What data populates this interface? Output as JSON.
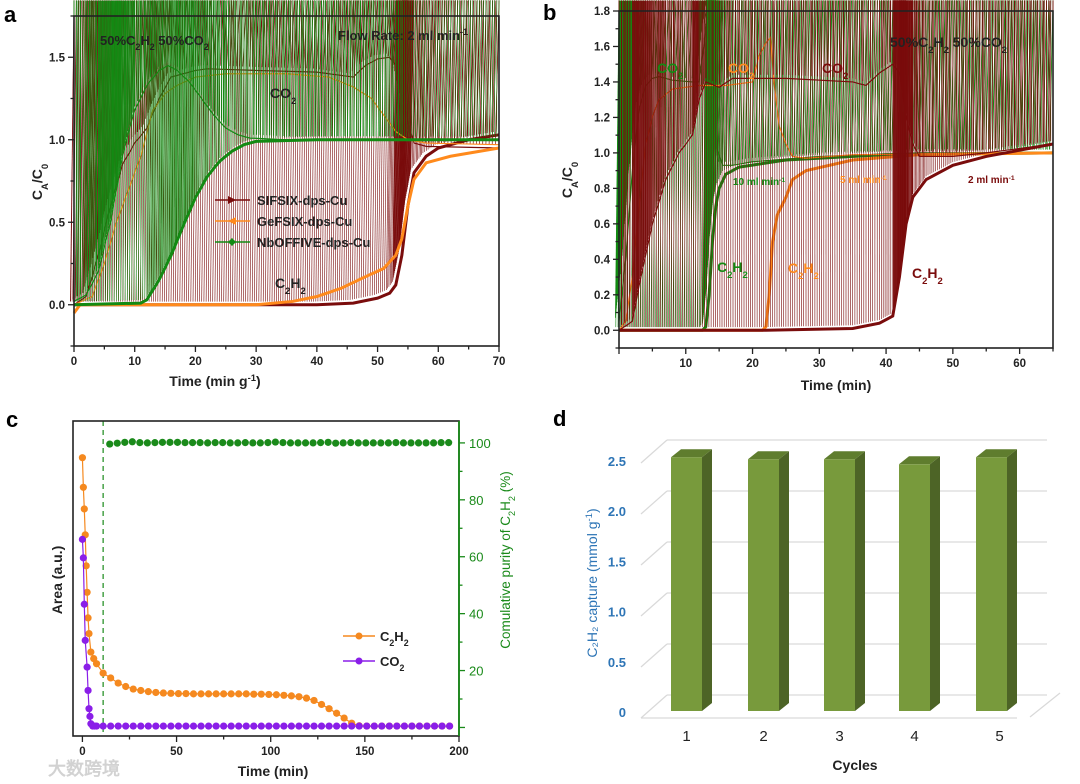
{
  "watermark": "大数跨境",
  "colors": {
    "sifsix": "#7a0c0c",
    "gefsix": "#ff8a1c",
    "nboffive": "#138a13",
    "c_orange": "#f5891f",
    "c_purple": "#8a1ee8",
    "c_green": "#1a8a1a",
    "d_bar": "#789a3c",
    "d_bar_side": "#4d6426",
    "d_bar_top": "#5f7d2e",
    "d_axis": "#2e75b6"
  },
  "chart_data": [
    {
      "panel": "a",
      "type": "line",
      "panel_label": "a",
      "xlabel": "Time (min g^{-1})",
      "ylabel": "C_{A}/C_{0}",
      "xlim": [
        0,
        70
      ],
      "ylim": [
        -0.25,
        1.75
      ],
      "xticks": [
        0,
        10,
        20,
        30,
        40,
        50,
        60,
        70
      ],
      "yticks": [
        0.0,
        0.5,
        1.0,
        1.5
      ],
      "ytick_labels": [
        "0.0",
        "0.5",
        "1.0",
        "1.5"
      ],
      "annotations": {
        "composition": "50%C_{2}H_{2}  50%CO_{2}",
        "flow": "Flow Rate: 2 ml min^{-1}",
        "co2": "CO_{2}",
        "c2h2": "C_{2}H_{2}"
      },
      "legend": [
        "SIFSIX-dps-Cu",
        "GeFSIX-dps-Cu",
        "NbOFFIVE-dps-Cu"
      ],
      "legend_position": "center",
      "series": [
        {
          "name": "SIFSIX-dps-Cu CO2",
          "material": "SIFSIX-dps-Cu",
          "gas": "CO2",
          "marker": "rtri",
          "filled": false,
          "x": [
            0,
            2,
            4,
            6,
            8,
            10,
            12,
            14,
            16,
            18,
            20,
            22,
            30,
            40,
            46,
            48,
            50,
            52,
            53,
            54,
            55,
            56,
            58,
            70
          ],
          "y": [
            0,
            0.05,
            0.3,
            0.6,
            0.85,
            0.98,
            1.07,
            1.25,
            1.38,
            1.4,
            1.42,
            1.43,
            1.42,
            1.41,
            1.38,
            1.45,
            1.49,
            1.5,
            1.45,
            1.3,
            1.1,
            0.98,
            0.96,
            0.95
          ]
        },
        {
          "name": "SIFSIX-dps-Cu C2H2",
          "material": "SIFSIX-dps-Cu",
          "gas": "C2H2",
          "marker": "rtri",
          "filled": true,
          "x": [
            0,
            10,
            40,
            46,
            50,
            52,
            53,
            54,
            55,
            56,
            58,
            60,
            65,
            70
          ],
          "y": [
            0,
            0,
            0,
            0.01,
            0.04,
            0.07,
            0.12,
            0.3,
            0.6,
            0.8,
            0.9,
            0.95,
            1.0,
            1.03
          ]
        },
        {
          "name": "GeFSIX-dps-Cu CO2",
          "material": "GeFSIX-dps-Cu",
          "gas": "CO2",
          "marker": "ltri",
          "filled": false,
          "x": [
            0,
            3,
            5,
            7,
            9,
            11,
            13,
            15,
            17,
            20,
            25,
            35,
            42,
            46,
            49,
            51,
            53,
            55,
            58,
            70
          ],
          "y": [
            0,
            0.05,
            0.25,
            0.5,
            0.7,
            0.9,
            1.18,
            1.28,
            1.33,
            1.38,
            1.4,
            1.4,
            1.38,
            1.32,
            1.25,
            1.15,
            1.05,
            1.0,
            0.98,
            0.97
          ]
        },
        {
          "name": "GeFSIX-dps-Cu C2H2",
          "material": "GeFSIX-dps-Cu",
          "gas": "C2H2",
          "marker": "ltri",
          "filled": true,
          "x": [
            0,
            1,
            30,
            36,
            40,
            44,
            48,
            51,
            53,
            54,
            55,
            56,
            58,
            62,
            70
          ],
          "y": [
            -0.05,
            0,
            0,
            0.02,
            0.05,
            0.1,
            0.17,
            0.22,
            0.3,
            0.4,
            0.6,
            0.76,
            0.86,
            0.9,
            0.95
          ]
        },
        {
          "name": "NbOFFIVE-dps-Cu CO2",
          "material": "NbOFFIVE-dps-Cu",
          "gas": "CO2",
          "marker": "diamond",
          "filled": false,
          "x": [
            0,
            2,
            4,
            6,
            8,
            9,
            10,
            12,
            14,
            15.5,
            17,
            19,
            21,
            23,
            25,
            27,
            29,
            35,
            54
          ],
          "y": [
            0.02,
            0.06,
            0.2,
            0.5,
            0.9,
            1.05,
            1.18,
            1.33,
            1.42,
            1.45,
            1.42,
            1.35,
            1.25,
            1.15,
            1.07,
            1.03,
            1.01,
            1.0,
            1.0
          ]
        },
        {
          "name": "NbOFFIVE-dps-Cu C2H2",
          "material": "NbOFFIVE-dps-Cu",
          "gas": "C2H2",
          "marker": "diamond",
          "filled": true,
          "x": [
            0,
            11,
            12,
            14,
            16,
            18,
            20,
            22,
            24,
            26,
            28,
            30,
            40,
            70
          ],
          "y": [
            0,
            0.01,
            0.03,
            0.15,
            0.3,
            0.48,
            0.65,
            0.78,
            0.87,
            0.93,
            0.97,
            0.99,
            1.0,
            1.0
          ]
        }
      ]
    },
    {
      "panel": "b",
      "type": "line",
      "panel_label": "b",
      "xlabel": "Time (min)",
      "ylabel": "C_{A}/C_{0}",
      "xlim": [
        0,
        65
      ],
      "ylim": [
        -0.1,
        1.8
      ],
      "xticks": [
        10,
        20,
        30,
        40,
        50,
        60
      ],
      "yticks": [
        0.0,
        0.2,
        0.4,
        0.6,
        0.8,
        1.0,
        1.2,
        1.4,
        1.6,
        1.8
      ],
      "ytick_labels": [
        "0.0",
        "0.2",
        "0.4",
        "0.6",
        "0.8",
        "1.0",
        "1.2",
        "1.4",
        "1.6",
        "1.8"
      ],
      "annotations": {
        "composition": "50%C_{2}H_{2} 50%CO_{2}",
        "co2_10": "CO_{2}",
        "co2_5": "CO_{2}",
        "co2_2": "CO_{2}",
        "rate_10": "10 ml min^{-1}",
        "rate_5": "5 ml min^{-1}",
        "rate_2": "2 ml min^{-1}",
        "c2h2_10": "C_{2}H_{2}",
        "c2h2_5": "C_{2}H_{2}",
        "c2h2_2": "C_{2}H_{2}"
      },
      "series": [
        {
          "name": "10 ml/min CO2",
          "marker": "rtri",
          "filled": false,
          "x": [
            0,
            1,
            2,
            3,
            4,
            5,
            6,
            8,
            11,
            12,
            12.7,
            13,
            13.5,
            14,
            14.5,
            15.5,
            17,
            20,
            30,
            45,
            65
          ],
          "y": [
            0.05,
            0.4,
            0.9,
            1.25,
            1.38,
            1.42,
            1.43,
            1.41,
            1.4,
            1.4,
            1.6,
            1.72,
            1.7,
            1.3,
            1.05,
            0.93,
            0.93,
            0.95,
            0.98,
            1.0,
            1.0
          ]
        },
        {
          "name": "10 ml/min C2H2",
          "marker": "rtri",
          "filled": true,
          "x": [
            0,
            12.5,
            13,
            13.5,
            14,
            14.5,
            15,
            16,
            18,
            25,
            40,
            65
          ],
          "y": [
            0,
            0,
            0.02,
            0.2,
            0.5,
            0.7,
            0.8,
            0.88,
            0.92,
            0.96,
            0.99,
            1.0
          ]
        },
        {
          "name": "5 ml/min CO2",
          "marker": "ltri",
          "filled": false,
          "x": [
            0,
            1,
            2,
            3,
            4,
            5,
            6,
            8,
            12,
            16,
            20,
            21,
            22,
            22.7,
            23.2,
            24,
            25,
            26,
            28,
            35,
            65
          ],
          "y": [
            0,
            0.05,
            0.3,
            0.7,
            1.05,
            1.2,
            1.3,
            1.36,
            1.38,
            1.38,
            1.4,
            1.55,
            1.62,
            1.65,
            1.4,
            1.15,
            1.05,
            0.98,
            0.97,
            0.99,
            1.0
          ]
        },
        {
          "name": "5 ml/min C2H2",
          "marker": "ltri",
          "filled": true,
          "x": [
            0,
            21.5,
            22,
            22.5,
            23,
            23.7,
            25,
            26,
            28,
            35,
            45,
            65
          ],
          "y": [
            0,
            0,
            0.02,
            0.2,
            0.5,
            0.65,
            0.75,
            0.85,
            0.9,
            0.96,
            0.99,
            1.0
          ]
        },
        {
          "name": "2 ml/min CO2",
          "marker": "diamond",
          "filled": false,
          "x": [
            0,
            2,
            3,
            5,
            7,
            9,
            11,
            12,
            13,
            15,
            17,
            25,
            35,
            37,
            39,
            41,
            42,
            43,
            44,
            45,
            50,
            55,
            65
          ],
          "y": [
            0,
            0.05,
            0.25,
            0.6,
            0.85,
            1.0,
            1.1,
            1.3,
            1.4,
            1.37,
            1.42,
            1.42,
            1.4,
            1.38,
            1.45,
            1.5,
            1.45,
            1.2,
            1.05,
            0.98,
            0.98,
            1.0,
            1.05
          ]
        },
        {
          "name": "2 ml/min C2H2",
          "marker": "diamond",
          "filled": true,
          "x": [
            0,
            22,
            35,
            39,
            41,
            42,
            43,
            44,
            46,
            50,
            55,
            65
          ],
          "y": [
            0,
            0,
            0.01,
            0.04,
            0.08,
            0.3,
            0.6,
            0.75,
            0.85,
            0.93,
            0.98,
            1.05
          ]
        }
      ]
    },
    {
      "panel": "c",
      "type": "line",
      "panel_label": "c",
      "xlabel": "Time (min)",
      "ylabel": "Area (a.u.)",
      "ylabel_right": "Comulative purity of C_{2}H_{2} (%)",
      "xlim": [
        -5,
        200
      ],
      "ylim_right": [
        -3,
        107.7
      ],
      "xticks": [
        0,
        50,
        100,
        150,
        200
      ],
      "yticks_right": [
        20,
        40,
        60,
        80,
        100
      ],
      "dashed_line_x": 11,
      "legend": [
        "C_{2}H_{2}",
        "CO_{2}"
      ],
      "legend_position": "center-right",
      "series": [
        {
          "name": "C2H2",
          "axis": "left",
          "x": [
            0,
            0.5,
            1,
            1.5,
            2,
            2.5,
            3,
            3.5,
            4.5,
            6,
            7.5,
            11,
            15,
            19,
            23,
            27,
            31,
            35,
            39,
            43,
            47,
            51,
            55,
            59,
            63,
            67,
            71,
            75,
            79,
            83,
            87,
            91,
            95,
            99,
            103,
            107,
            111,
            115,
            119,
            123,
            127,
            131,
            135,
            139,
            143,
            147,
            151,
            155,
            159,
            163,
            167,
            171,
            175,
            179,
            183,
            187,
            191,
            195
          ],
          "y": [
            94.8,
            84.4,
            76.8,
            67.7,
            56.8,
            47.5,
            38.5,
            33,
            26.5,
            24.2,
            22.4,
            19.1,
            17.4,
            15.6,
            14.4,
            13.5,
            13,
            12.6,
            12.3,
            12.1,
            12,
            11.9,
            11.9,
            11.8,
            11.8,
            11.8,
            11.8,
            11.8,
            11.8,
            11.8,
            11.8,
            11.7,
            11.7,
            11.6,
            11.5,
            11.3,
            11.1,
            10.8,
            10.3,
            9.5,
            8.1,
            6.6,
            5.0,
            3.3,
            1.5,
            0.6,
            0.5,
            0.5,
            0.5,
            0.5,
            0.5,
            0.5,
            0.5,
            0.5,
            0.5,
            0.5,
            0.5,
            0.5
          ]
        },
        {
          "name": "CO2",
          "axis": "left",
          "x": [
            0,
            0.5,
            1,
            1.5,
            2.5,
            3,
            3.5,
            4,
            4.5,
            5.5,
            6.5,
            7.5,
            11,
            15,
            19,
            23,
            27,
            31,
            35,
            39,
            43,
            47,
            51,
            55,
            59,
            63,
            67,
            71,
            75,
            79,
            83,
            87,
            91,
            95,
            99,
            103,
            107,
            111,
            115,
            119,
            123,
            127,
            131,
            135,
            139,
            143,
            147,
            151,
            155,
            159,
            163,
            167,
            171,
            175,
            179,
            183,
            187,
            191,
            195
          ],
          "y": [
            66.1,
            59.6,
            43.3,
            30.6,
            21.2,
            13,
            6.6,
            3.9,
            1.3,
            0.5,
            0.5,
            0.5,
            0.5,
            0.5,
            0.5,
            0.5,
            0.5,
            0.5,
            0.5,
            0.5,
            0.5,
            0.5,
            0.5,
            0.5,
            0.5,
            0.5,
            0.5,
            0.5,
            0.5,
            0.5,
            0.5,
            0.5,
            0.5,
            0.5,
            0.5,
            0.5,
            0.5,
            0.5,
            0.5,
            0.5,
            0.5,
            0.5,
            0.5,
            0.5,
            0.5,
            0.5,
            0.5,
            0.5,
            0.5,
            0.5,
            0.5,
            0.5,
            0.5,
            0.5,
            0.5,
            0.5,
            0.5,
            0.5,
            0.5
          ]
        },
        {
          "name": "Cumulative purity of C2H2",
          "axis": "right",
          "x": [
            14.5,
            18.5,
            22.5,
            26.5,
            30.5,
            34.5,
            38.5,
            42.5,
            46.5,
            50.5,
            54.5,
            58.5,
            62.5,
            66.5,
            70.5,
            74.5,
            78.5,
            82.5,
            86.5,
            90.5,
            94.5,
            98.5,
            102.5,
            106.5,
            110.5,
            114.5,
            118.5,
            122.5,
            126.5,
            130.5,
            134.5,
            138.5,
            142.5,
            146.5,
            150.5,
            154.5,
            158.5,
            162.5,
            166.5,
            170.5,
            174.5,
            178.5,
            182.5,
            186.5,
            190.5,
            194.5
          ],
          "y": [
            99.6,
            99.9,
            100.2,
            100.4,
            100.1,
            100,
            100.1,
            100.2,
            100.2,
            100.2,
            100.1,
            100.1,
            100.1,
            100,
            100.1,
            100.1,
            100,
            100,
            100.1,
            100,
            100,
            100.1,
            100.3,
            100.1,
            100,
            100,
            100,
            100,
            100.1,
            100.2,
            99.9,
            100,
            100.1,
            100,
            100,
            100,
            100,
            100,
            100.1,
            100,
            100,
            100,
            100,
            100,
            100.1,
            100.1
          ]
        }
      ]
    },
    {
      "panel": "d",
      "type": "bar",
      "panel_label": "d",
      "xlabel": "Cycles",
      "ylabel": "C₂H₂ capture (mmol g^{-1})",
      "categories": [
        "1",
        "2",
        "3",
        "4",
        "5"
      ],
      "values": [
        2.52,
        2.5,
        2.5,
        2.45,
        2.52
      ],
      "ylim": [
        0,
        2.5
      ],
      "yticks": [
        0,
        0.5,
        1.0,
        1.5,
        2.0,
        2.5
      ],
      "ytick_labels": [
        "0",
        "0.5",
        "1.0",
        "1.5",
        "2.0",
        "2.5"
      ],
      "grid": true
    }
  ]
}
